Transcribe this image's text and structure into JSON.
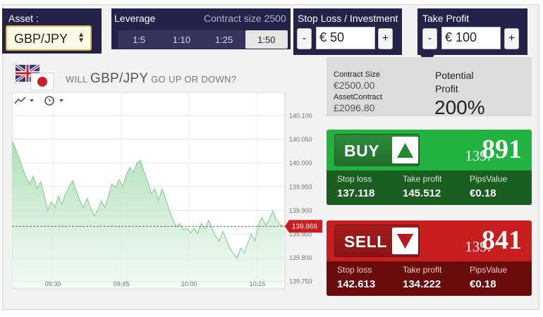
{
  "header": {
    "asset_label": "Asset :",
    "asset_value": "GBP/JPY",
    "leverage_label": "Leverage",
    "contract_size_label": "Contract size 2500",
    "leverage_options": [
      "1:5",
      "1:10",
      "1:25",
      "1:50"
    ],
    "leverage_selected": "1:50",
    "stop_loss_label": "Stop Loss / Investment",
    "stop_loss_value": "€ 50",
    "take_profit_label": "Take Profit",
    "take_profit_value": "€ 100",
    "minus": "-",
    "plus": "+"
  },
  "question": {
    "prefix": "WILL",
    "pair": "GBP/JPY",
    "suffix": "GO UP OR DOWN?"
  },
  "info": {
    "contract_size_label": "Contract Size",
    "contract_size_value": "€2500.00",
    "asset_contract_label": "AssetContract",
    "asset_contract_value": "£2096.80",
    "potential_label_1": "Potential",
    "potential_label_2": "Profit",
    "potential_value": "200%"
  },
  "buy": {
    "label": "BUY",
    "price_small": "139.",
    "price_large": "891",
    "stop_loss_label": "Stop loss",
    "stop_loss_value": "137.118",
    "take_profit_label": "Take profit",
    "take_profit_value": "145.512",
    "pips_label": "PipsValue",
    "pips_value": "€0.18"
  },
  "sell": {
    "label": "SELL",
    "price_small": "139.",
    "price_large": "841",
    "stop_loss_label": "Stop loss",
    "stop_loss_value": "142.613",
    "take_profit_label": "Take profit",
    "take_profit_value": "134.222",
    "pips_label": "PipsValue",
    "pips_value": "€0.18"
  },
  "colors": {
    "header_bg": "#23234a",
    "buy": "#21b23f",
    "sell": "#c81e20",
    "chart_line": "#8fd19e",
    "current_price": "#c81e20"
  },
  "chart_data": {
    "type": "area",
    "y_ticks": [
      "140.100",
      "140.050",
      "140.000",
      "139.950",
      "139.900",
      "139.850",
      "139.800",
      "139.750"
    ],
    "x_ticks": [
      "09:30",
      "09:45",
      "10:00",
      "10:15"
    ],
    "ylim": [
      139.74,
      140.12
    ],
    "current_price_label": "139.866",
    "current_price": 139.866,
    "series": [
      {
        "values": [
          140.047,
          140.03,
          140.01,
          139.988,
          139.968,
          139.955,
          139.972,
          139.945,
          139.96,
          139.932,
          139.9,
          139.918,
          139.905,
          139.93,
          139.912,
          139.935,
          139.95,
          139.962,
          139.94,
          139.92,
          139.905,
          139.925,
          139.905,
          139.888,
          139.9,
          139.92,
          139.905,
          139.93,
          139.955,
          139.948,
          139.965,
          139.95,
          139.975,
          139.99,
          139.98,
          140.0,
          140.005,
          139.98,
          139.96,
          139.935,
          139.945,
          139.92,
          139.945,
          139.925,
          139.9,
          139.88,
          139.865,
          139.872,
          139.858,
          139.862,
          139.852,
          139.862,
          139.85,
          139.872,
          139.86,
          139.878,
          139.862,
          139.845,
          139.835,
          139.855,
          139.838,
          139.82,
          139.808,
          139.798,
          139.82,
          139.81,
          139.83,
          139.85,
          139.835,
          139.87,
          139.885,
          139.868,
          139.88,
          139.898,
          139.88,
          139.87,
          139.866
        ]
      }
    ]
  }
}
